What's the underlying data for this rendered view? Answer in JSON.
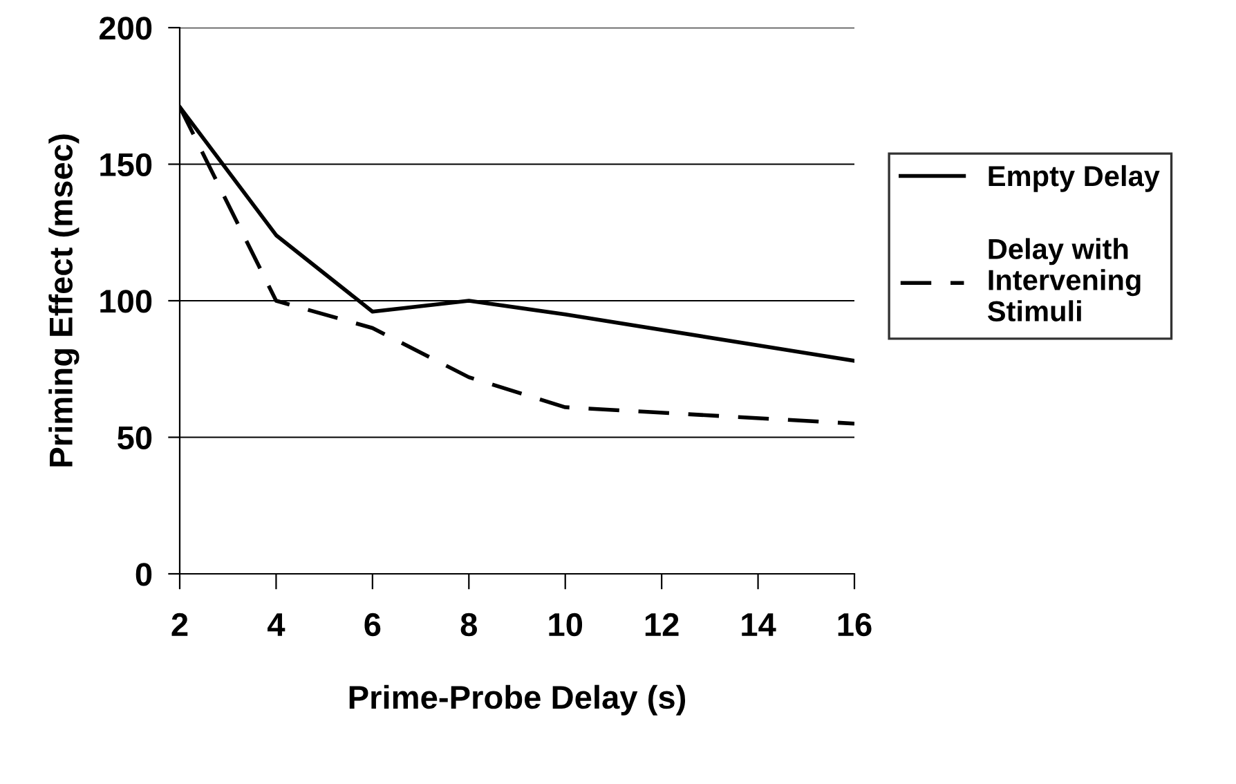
{
  "chart_data": {
    "type": "line",
    "xlabel": "Prime-Probe Delay (s)",
    "ylabel": "Priming Effect (msec)",
    "x": [
      2,
      4,
      6,
      8,
      10,
      16
    ],
    "series": [
      {
        "name": "Empty Delay",
        "color": "#000000",
        "line_style": "solid",
        "values": [
          171,
          124,
          96,
          100,
          95,
          78
        ]
      },
      {
        "name": "Delay with\nIntervening\nStimuli",
        "color": "#000000",
        "line_style": "dashed",
        "values": [
          171,
          100,
          90,
          72,
          61,
          55
        ]
      }
    ],
    "xlim": [
      2,
      16
    ],
    "xticks": [
      2,
      4,
      6,
      8,
      10,
      12,
      14,
      16
    ],
    "ylim": [
      0,
      200
    ],
    "yticks": [
      0,
      50,
      100,
      150,
      200
    ],
    "grid": "y",
    "legend": "right",
    "marker": "none"
  }
}
